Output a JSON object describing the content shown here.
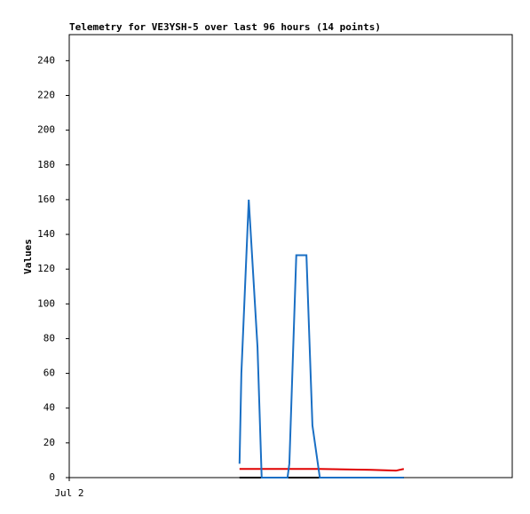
{
  "chart_data": {
    "type": "line",
    "title": "Telemetry for VE3YSH-5 over last 96 hours (14 points)",
    "y_label": "Values",
    "x": [
      36.9,
      37.3,
      38.9,
      40.8,
      41.7,
      47.3,
      47.7,
      49.2,
      51.4,
      52.7,
      54.3,
      65.4,
      70.8,
      72.5
    ],
    "xlim": [
      0,
      96
    ],
    "xticks": [
      {
        "value": 0,
        "label": "Jul 2"
      }
    ],
    "ylim": [
      0,
      255
    ],
    "yticks": [
      0,
      20,
      40,
      60,
      80,
      100,
      120,
      140,
      160,
      180,
      200,
      220,
      240
    ],
    "series": [
      {
        "color": "#1a6fc4",
        "values": [
          8,
          60,
          160,
          75,
          0,
          0,
          8,
          128,
          128,
          30,
          0,
          0,
          0,
          0
        ]
      },
      {
        "color": "#e00000",
        "values": [
          5,
          5,
          5,
          5,
          5,
          5,
          5,
          5,
          5,
          5,
          5,
          4.5,
          4,
          5
        ]
      },
      {
        "color": "#000000",
        "values": [
          0,
          0,
          0,
          0,
          0,
          0,
          0,
          0,
          0,
          0,
          0,
          0,
          0,
          0
        ]
      }
    ]
  }
}
